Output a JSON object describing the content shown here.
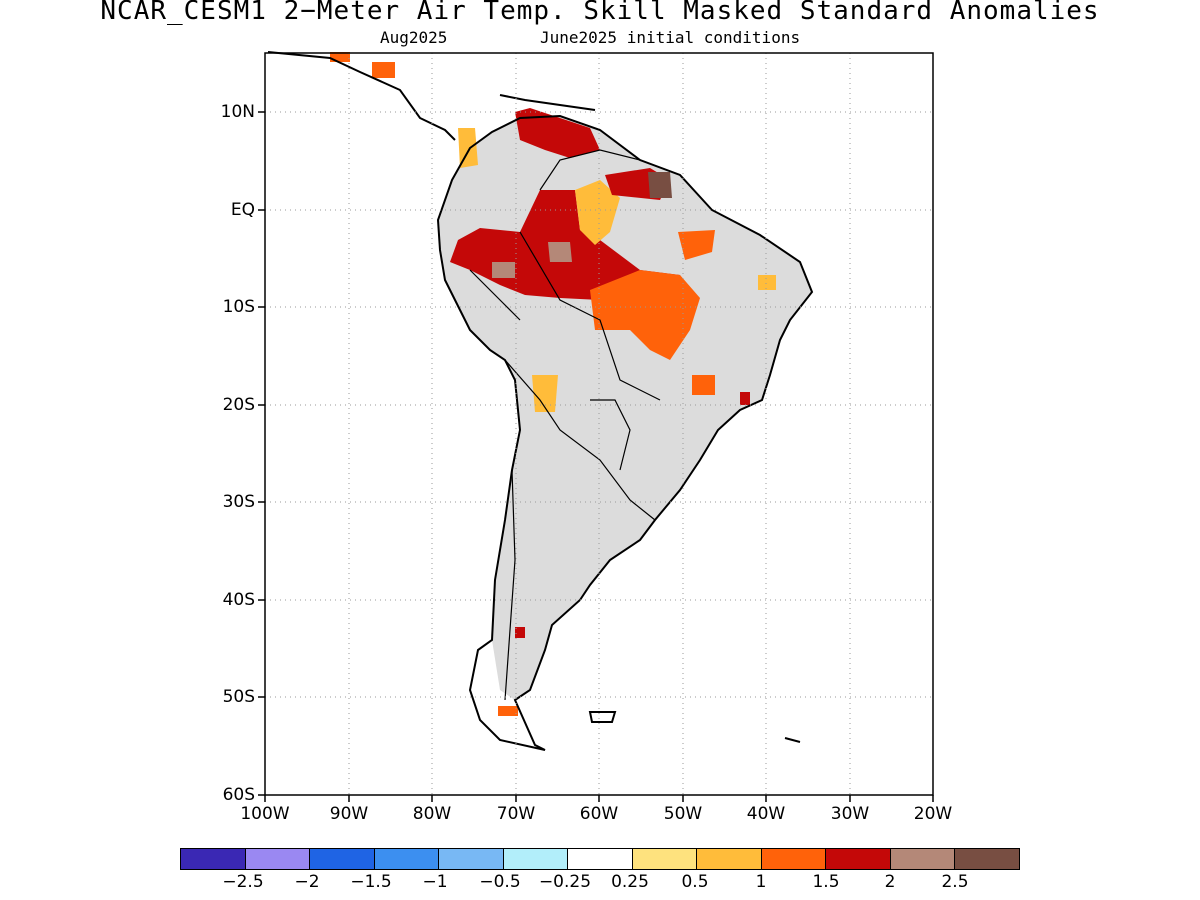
{
  "header": {
    "title": "NCAR_CESM1 2−Meter Air Temp. Skill Masked Standard Anomalies",
    "valid": "Aug2025",
    "init": "June2025 initial conditions"
  },
  "map": {
    "lat_labels": [
      "10N",
      "EQ",
      "10S",
      "20S",
      "30S",
      "40S",
      "50S",
      "60S"
    ],
    "lon_labels": [
      "100W",
      "90W",
      "80W",
      "70W",
      "60W",
      "50W",
      "40W",
      "30W",
      "20W"
    ],
    "lon_range": [
      -100,
      -20
    ],
    "lat_range": [
      -60,
      15
    ]
  },
  "legend": {
    "colors": [
      "#3a28b4",
      "#9a88f2",
      "#1f64e4",
      "#3c8ff0",
      "#78b8f4",
      "#b2eefa",
      "#ffffff",
      "#fee27e",
      "#ffbc3a",
      "#ff620a",
      "#c40808",
      "#b48878",
      "#784e42"
    ],
    "labels": [
      "−2.5",
      "−2",
      "−1.5",
      "−1",
      "−0.5",
      "−0.25",
      "0.25",
      "0.5",
      "1",
      "1.5",
      "2",
      "2.5"
    ]
  }
}
